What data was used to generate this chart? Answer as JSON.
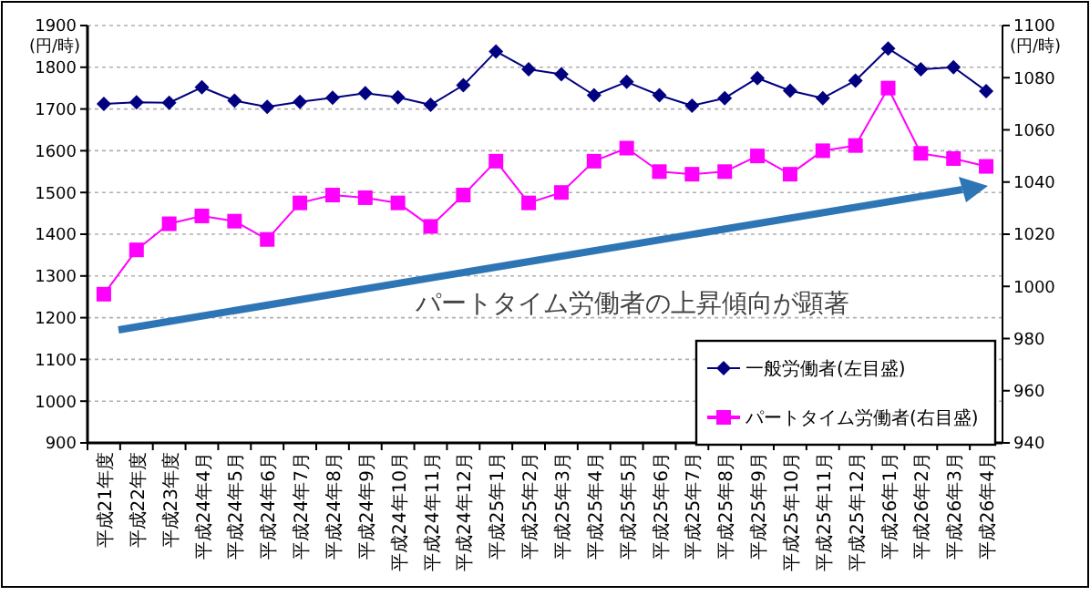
{
  "chart_data": {
    "type": "line",
    "ylabel": "(円/時)",
    "y2label": "(円/時)",
    "categories": [
      "平成21年度",
      "平成22年度",
      "平成23年度",
      "平成24年4月",
      "平成24年5月",
      "平成24年6月",
      "平成24年7月",
      "平成24年8月",
      "平成24年9月",
      "平成24年10月",
      "平成24年11月",
      "平成24年12月",
      "平成25年1月",
      "平成25年2月",
      "平成25年3月",
      "平成25年4月",
      "平成25年5月",
      "平成25年6月",
      "平成25年7月",
      "平成25年8月",
      "平成25年9月",
      "平成25年10月",
      "平成25年11月",
      "平成25年12月",
      "平成26年1月",
      "平成26年2月",
      "平成26年3月",
      "平成26年4月"
    ],
    "series": [
      {
        "name": "一般労働者(左目盛)",
        "color": "#000080",
        "marker": "diamond",
        "values": [
          1712,
          1716,
          1715,
          1752,
          1720,
          1705,
          1717,
          1727,
          1738,
          1728,
          1710,
          1757,
          1838,
          1795,
          1783,
          1733,
          1765,
          1733,
          1708,
          1726,
          1774,
          1744,
          1726,
          1768,
          1845,
          1795,
          1800,
          1743
        ]
      },
      {
        "name": "パートタイム労働者(右目盛)",
        "color": "#ff00ff",
        "marker": "square",
        "axis": "y2",
        "values": [
          997,
          1014,
          1024,
          1027,
          1025,
          1018,
          1032,
          1035,
          1034,
          1032,
          1023,
          1035,
          1048,
          1032,
          1036,
          1048,
          1053,
          1044,
          1043,
          1044,
          1050,
          1043,
          1052,
          1054,
          1076,
          1051,
          1049,
          1046
        ]
      }
    ],
    "ylim": [
      900,
      1900
    ],
    "yticks": [
      900,
      1000,
      1100,
      1200,
      1300,
      1400,
      1500,
      1600,
      1700,
      1800,
      1900
    ],
    "y2lim": [
      940,
      1100
    ],
    "y2ticks": [
      940,
      960,
      980,
      1000,
      1020,
      1040,
      1060,
      1080,
      1100
    ],
    "annotations": [
      "パートタイム労働者の上昇傾向が顕著"
    ],
    "grid": "y",
    "legend": "bottom right"
  }
}
